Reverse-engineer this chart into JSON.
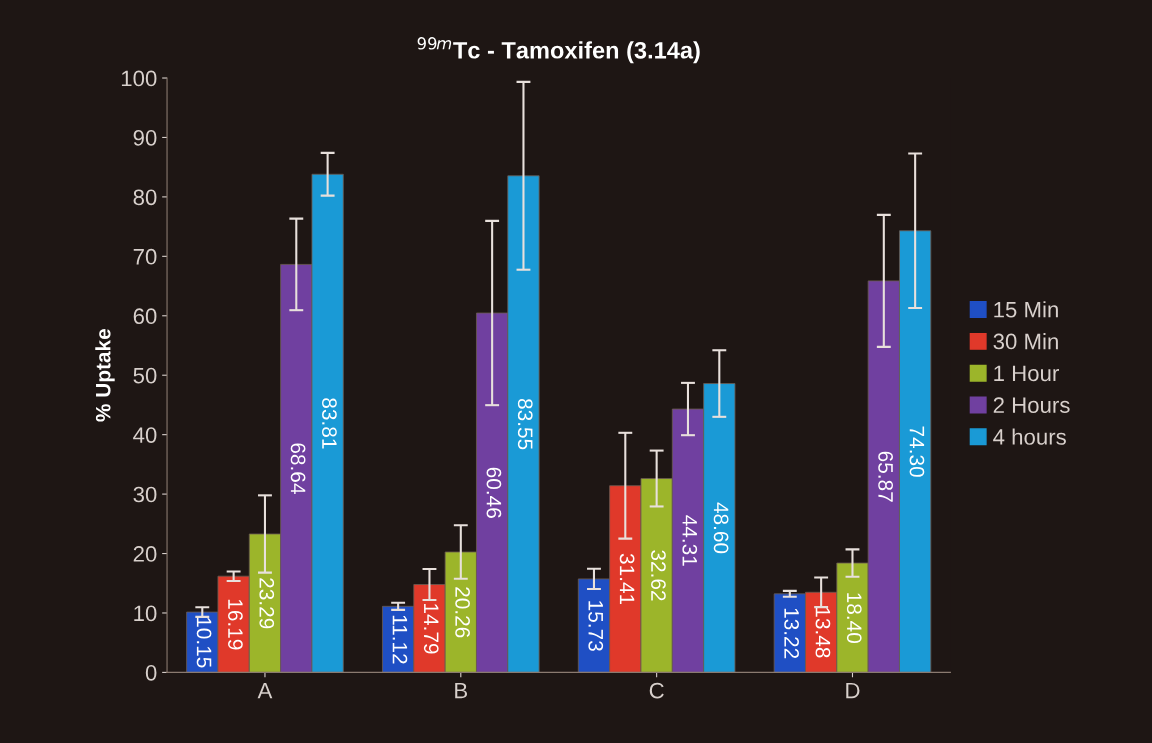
{
  "chart_data": {
    "type": "bar",
    "title": "$^{99m}$Tc - Tamoxifen (3.14a)",
    "ylabel": "% Uptake",
    "categories": [
      "A",
      "B",
      "C",
      "D"
    ],
    "series": [
      {
        "name": "15 Min",
        "color": "#1f4fc4",
        "values": [
          10.15,
          11.12,
          15.73,
          13.22
        ],
        "errors": [
          0.8,
          0.6,
          1.7,
          0.5
        ],
        "value_labels": [
          "10.15",
          "11.12",
          "15.73",
          "13.22"
        ]
      },
      {
        "name": "30 Min",
        "color": "#e0392a",
        "values": [
          16.19,
          14.79,
          31.41,
          13.48
        ],
        "errors": [
          0.8,
          2.6,
          8.9,
          2.5
        ],
        "value_labels": [
          "16.19",
          "14.79",
          "31.41",
          "13.48"
        ]
      },
      {
        "name": "1 Hour",
        "color": "#9cb52a",
        "values": [
          23.29,
          20.26,
          32.62,
          18.4
        ],
        "errors": [
          6.5,
          4.5,
          4.7,
          2.3
        ],
        "value_labels": [
          "23.29",
          "20.26",
          "32.62",
          "18.40"
        ]
      },
      {
        "name": "2 Hours",
        "color": "#7040a0",
        "values": [
          68.64,
          60.46,
          44.31,
          65.87
        ],
        "errors": [
          7.7,
          15.5,
          4.4,
          11.1
        ],
        "value_labels": [
          "68.64",
          "60.46",
          "44.31",
          "65.87"
        ]
      },
      {
        "name": "4 hours",
        "color": "#1a9ad6",
        "values": [
          83.81,
          83.55,
          48.6,
          74.3
        ],
        "errors": [
          3.6,
          15.8,
          5.6,
          13.0
        ],
        "value_labels": [
          "83.81",
          "83.55",
          "48.60",
          "74.30"
        ]
      }
    ],
    "ylim": [
      0,
      100
    ],
    "yticks": [
      0,
      10,
      20,
      30,
      40,
      50,
      60,
      70,
      80,
      90,
      100
    ],
    "legend": "right",
    "grid": false
  }
}
